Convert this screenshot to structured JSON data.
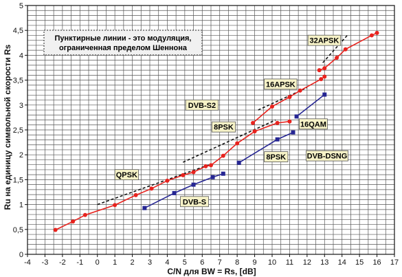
{
  "chart_data": {
    "type": "line",
    "xlabel": "C/N для BW = Rs,  [dB]",
    "ylabel": "Ru на единицу символьной скорости Rs",
    "xlim": [
      -4,
      17
    ],
    "ylim": [
      0,
      5
    ],
    "x_ticks": [
      "-4",
      "-3",
      "-2",
      "-1",
      "0",
      "1",
      "2",
      "3",
      "4",
      "5",
      "6",
      "7",
      "8",
      "9",
      "10",
      "11",
      "12",
      "13",
      "14",
      "15",
      "16",
      "17"
    ],
    "y_ticks": [
      "0",
      "0,5",
      "1",
      "1,5",
      "2",
      "2,5",
      "3",
      "3,5",
      "4",
      "4,5",
      "5"
    ],
    "grid": true,
    "note": "Пунктирные линии - это модуляция, ограниченная пределом Шеннона",
    "series": [
      {
        "name": "DVB-S2",
        "color": "#e8231e",
        "marker": "circle",
        "segments": [
          {
            "x": [
              -2.4,
              -1.4,
              -0.7,
              1.0,
              2.2,
              3.1,
              4.0,
              4.9,
              5.5,
              6.2,
              6.5,
              7.2,
              8.0,
              9.0,
              10.3,
              11.0
            ],
            "y": [
              0.49,
              0.66,
              0.79,
              0.99,
              1.19,
              1.32,
              1.48,
              1.59,
              1.65,
              1.77,
              1.79,
              1.98,
              2.23,
              2.47,
              2.64,
              2.67
            ]
          },
          {
            "x": [
              8.9,
              10.0,
              11.0,
              11.6,
              12.8,
              13.0
            ],
            "y": [
              2.64,
              2.97,
              3.16,
              3.29,
              3.52,
              3.57
            ]
          },
          {
            "x": [
              12.7,
              13.0,
              13.7,
              14.2,
              15.7,
              16.0
            ],
            "y": [
              3.7,
              3.74,
              3.95,
              4.12,
              4.4,
              4.45
            ]
          }
        ]
      },
      {
        "name": "DVB-S / DVB-DSNG",
        "color": "#262693",
        "marker": "square",
        "segments": [
          {
            "x": [
              2.7,
              4.4,
              5.5,
              6.6,
              7.2
            ],
            "y": [
              0.93,
              1.23,
              1.4,
              1.55,
              1.62
            ]
          },
          {
            "x": [
              8.1,
              10.3,
              11.2
            ],
            "y": [
              1.84,
              2.31,
              2.45
            ]
          },
          {
            "x": [
              11.4,
              13.0
            ],
            "y": [
              2.77,
              3.21
            ]
          }
        ]
      }
    ],
    "shannon_lines": [
      {
        "name": "QPSK",
        "x": [
          0.0,
          6.4
        ],
        "y": [
          1.0,
          1.8
        ]
      },
      {
        "name": "8PSK",
        "x": [
          4.9,
          10.2
        ],
        "y": [
          1.85,
          2.7
        ]
      },
      {
        "name": "16APSK",
        "x": [
          9.2,
          12.0
        ],
        "y": [
          2.9,
          3.35
        ]
      },
      {
        "name": "32APSK",
        "x": [
          12.9,
          14.3
        ],
        "y": [
          3.85,
          4.4
        ]
      }
    ],
    "labels": [
      {
        "text": "32APSK",
        "x": 12.05,
        "y": 4.3
      },
      {
        "text": "16APSK",
        "x": 9.55,
        "y": 3.42
      },
      {
        "text": "DVB-S2",
        "x": 5.05,
        "y": 3.0
      },
      {
        "text": "16QAM",
        "x": 11.55,
        "y": 2.62
      },
      {
        "text": "8PSK",
        "x": 6.55,
        "y": 2.56
      },
      {
        "text": "8PSK",
        "x": 9.55,
        "y": 1.96
      },
      {
        "text": "DVB-DSNG",
        "x": 11.95,
        "y": 1.98
      },
      {
        "text": "QPSK",
        "x": 1.0,
        "y": 1.6
      },
      {
        "text": "DVB-S",
        "x": 4.75,
        "y": 1.06
      }
    ]
  }
}
